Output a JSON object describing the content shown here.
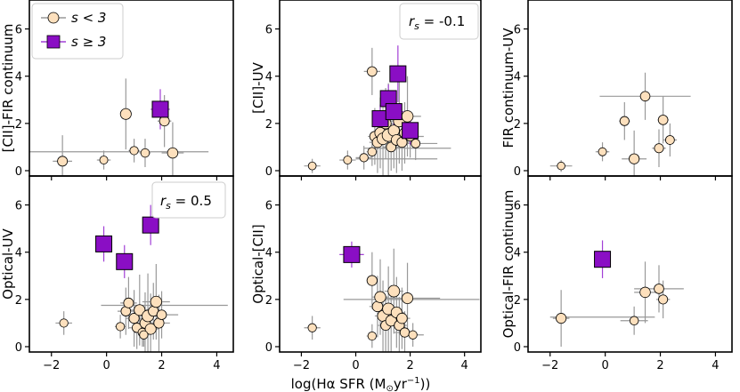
{
  "colors": {
    "low": "#fde0bd",
    "high": "#8a0ec4",
    "err_low": "#999999",
    "err_high": "#a23fd6",
    "edge": "#000000"
  },
  "legend": {
    "low_label": "s < 3",
    "high_label": "s ≥ 3"
  },
  "chart_data": [
    {
      "id": "cii-fir",
      "type": "scatter",
      "ylabel": "[CII]-FIR continuum",
      "xlim": [
        -2.8,
        4.6
      ],
      "ylim": [
        0,
        7
      ],
      "xticks": [
        -2,
        0,
        2,
        4
      ],
      "yticks": [
        0,
        2,
        4,
        6
      ],
      "legend": "top-left",
      "series": [
        {
          "group": "low",
          "points": [
            {
              "x": -1.6,
              "y": 0.4,
              "xe": 0.35,
              "ye": 1.1
            },
            {
              "x": -0.1,
              "y": 0.45,
              "xe": 0.25,
              "ye": 0.4
            },
            {
              "x": 0.7,
              "y": 2.4,
              "xe": 0.2,
              "ye": 1.5
            },
            {
              "x": 1.0,
              "y": 0.85,
              "xe": 0.2,
              "ye": 0.5
            },
            {
              "x": 1.4,
              "y": 0.75,
              "xe": 0.2,
              "ye": 0.6
            },
            {
              "x": 2.1,
              "y": 2.1,
              "xe": 0.25,
              "ye": 1.1
            },
            {
              "x": 2.4,
              "y": 0.75,
              "xe": 0.4,
              "ye": 1.3
            },
            {
              "x": 0.2,
              "y": 0.8,
              "xe": 3.5,
              "ye": 0
            }
          ]
        },
        {
          "group": "high",
          "points": [
            {
              "x": 1.95,
              "y": 2.6,
              "xe": 0.35,
              "ye": 0.85
            }
          ]
        }
      ]
    },
    {
      "id": "cii-uv",
      "type": "scatter",
      "ylabel": "[CII]-UV",
      "annotation": "r_s = -0.1",
      "xlim": [
        -2.8,
        4.6
      ],
      "ylim": [
        0,
        7
      ],
      "xticks": [
        -2,
        0,
        2,
        4
      ],
      "yticks": [
        0,
        2,
        4,
        6
      ],
      "series": [
        {
          "group": "low",
          "points": [
            {
              "x": -1.6,
              "y": 0.2,
              "xe": 0.3,
              "ye": 0.3
            },
            {
              "x": -0.3,
              "y": 0.45,
              "xe": 0.3,
              "ye": 0.4
            },
            {
              "x": 0.3,
              "y": 0.55,
              "xe": 0.3,
              "ye": 0.5
            },
            {
              "x": 0.6,
              "y": 4.2,
              "xe": 0.3,
              "ye": 1.0
            },
            {
              "x": 0.6,
              "y": 0.8,
              "xe": 0.2,
              "ye": 0.6
            },
            {
              "x": 0.7,
              "y": 1.45,
              "xe": 0.25,
              "ye": 1.2
            },
            {
              "x": 0.8,
              "y": 1.2,
              "xe": 0.3,
              "ye": 1.3
            },
            {
              "x": 0.9,
              "y": 1.6,
              "xe": 0.3,
              "ye": 1.5
            },
            {
              "x": 1.0,
              "y": 1.35,
              "xe": 0.35,
              "ye": 1.8
            },
            {
              "x": 1.1,
              "y": 2.0,
              "xe": 0.3,
              "ye": 1.5
            },
            {
              "x": 1.2,
              "y": 1.5,
              "xe": 0.35,
              "ye": 2.2
            },
            {
              "x": 1.3,
              "y": 1.0,
              "xe": 0.3,
              "ye": 1.0
            },
            {
              "x": 1.4,
              "y": 1.7,
              "xe": 0.4,
              "ye": 1.6
            },
            {
              "x": 1.5,
              "y": 1.3,
              "xe": 0.3,
              "ye": 1.4
            },
            {
              "x": 1.6,
              "y": 2.1,
              "xe": 0.35,
              "ye": 1.8
            },
            {
              "x": 1.7,
              "y": 1.2,
              "xe": 0.4,
              "ye": 1.2
            },
            {
              "x": 1.8,
              "y": 1.6,
              "xe": 0.3,
              "ye": 1.3
            },
            {
              "x": 1.9,
              "y": 2.3,
              "xe": 0.5,
              "ye": 1.7
            },
            {
              "x": 2.0,
              "y": 1.45,
              "xe": 0.5,
              "ye": 0.9
            },
            {
              "x": 2.2,
              "y": 1.15,
              "xe": 0.8,
              "ye": 0.7
            },
            {
              "x": 1.5,
              "y": 0.5,
              "xe": 1.5,
              "ye": 0
            },
            {
              "x": 1.9,
              "y": 0.95,
              "xe": 1.6,
              "ye": 0
            }
          ]
        },
        {
          "group": "high",
          "points": [
            {
              "x": 1.2,
              "y": 3.05,
              "xe": 0.3,
              "ye": 0.6
            },
            {
              "x": 1.55,
              "y": 4.1,
              "xe": 0.25,
              "ye": 1.2
            },
            {
              "x": 0.9,
              "y": 2.2,
              "xe": 0.3,
              "ye": 0.6
            },
            {
              "x": 1.4,
              "y": 2.5,
              "xe": 0.35,
              "ye": 0.7
            },
            {
              "x": 2.0,
              "y": 1.7,
              "xe": 0.25,
              "ye": 0.6
            }
          ]
        }
      ]
    },
    {
      "id": "fir-uv",
      "type": "scatter",
      "ylabel": "FIR continuum-UV",
      "xlim": [
        -2.8,
        4.6
      ],
      "ylim": [
        0,
        7
      ],
      "xticks": [
        -2,
        0,
        2,
        4
      ],
      "yticks": [
        0,
        2,
        4,
        6
      ],
      "series": [
        {
          "group": "low",
          "points": [
            {
              "x": -1.6,
              "y": 0.2,
              "xe": 0.4,
              "ye": 0.25
            },
            {
              "x": -0.1,
              "y": 0.8,
              "xe": 0.25,
              "ye": 0.4
            },
            {
              "x": 0.7,
              "y": 2.1,
              "xe": 0.2,
              "ye": 0.8
            },
            {
              "x": 1.05,
              "y": 0.5,
              "xe": 0.45,
              "ye": 1.2
            },
            {
              "x": 1.45,
              "y": 3.15,
              "xe": 1.65,
              "ye": 1.0
            },
            {
              "x": 1.95,
              "y": 0.95,
              "xe": 0.25,
              "ye": 0.8
            },
            {
              "x": 2.1,
              "y": 2.15,
              "xe": 0.2,
              "ye": 1.0
            },
            {
              "x": 2.35,
              "y": 1.3,
              "xe": 0.25,
              "ye": 0.7
            }
          ]
        },
        {
          "group": "high",
          "points": []
        }
      ]
    },
    {
      "id": "opt-uv",
      "type": "scatter",
      "ylabel": "Optical-UV",
      "annotation": "r_s = 0.5",
      "xlim": [
        -2.8,
        4.6
      ],
      "ylim": [
        0,
        7
      ],
      "xticks": [
        -2,
        0,
        2,
        4
      ],
      "yticks": [
        0,
        2,
        4,
        6
      ],
      "series": [
        {
          "group": "low",
          "points": [
            {
              "x": -1.55,
              "y": 1.0,
              "xe": 0.3,
              "ye": 0.5
            },
            {
              "x": 0.5,
              "y": 0.85,
              "xe": 0.2,
              "ye": 0.5
            },
            {
              "x": 0.7,
              "y": 1.5,
              "xe": 0.3,
              "ye": 1.0
            },
            {
              "x": 0.8,
              "y": 1.85,
              "xe": 0.3,
              "ye": 1.1
            },
            {
              "x": 1.0,
              "y": 1.2,
              "xe": 0.3,
              "ye": 1.2
            },
            {
              "x": 1.1,
              "y": 0.8,
              "xe": 0.3,
              "ye": 0.9
            },
            {
              "x": 1.2,
              "y": 1.55,
              "xe": 0.35,
              "ye": 1.5
            },
            {
              "x": 1.3,
              "y": 0.6,
              "xe": 0.3,
              "ye": 0.6
            },
            {
              "x": 1.4,
              "y": 1.0,
              "xe": 0.3,
              "ye": 1.3
            },
            {
              "x": 1.5,
              "y": 1.3,
              "xe": 0.35,
              "ye": 1.8
            },
            {
              "x": 1.6,
              "y": 0.75,
              "xe": 0.3,
              "ye": 1.5
            },
            {
              "x": 1.7,
              "y": 1.5,
              "xe": 0.4,
              "ye": 1.2
            },
            {
              "x": 1.8,
              "y": 1.9,
              "xe": 0.5,
              "ye": 1.6
            },
            {
              "x": 1.9,
              "y": 1.0,
              "xe": 0.4,
              "ye": 1.2
            },
            {
              "x": 2.0,
              "y": 1.35,
              "xe": 0.6,
              "ye": 1.0
            },
            {
              "x": 2.1,
              "y": 1.75,
              "xe": 2.3,
              "ye": 0
            },
            {
              "x": 1.35,
              "y": 0.5,
              "xe": 0.2,
              "ye": 0.5
            }
          ]
        },
        {
          "group": "high",
          "points": [
            {
              "x": -0.1,
              "y": 4.35,
              "xe": 0.3,
              "ye": 0.75
            },
            {
              "x": 0.65,
              "y": 3.6,
              "xe": 0.15,
              "ye": 0.7
            },
            {
              "x": 1.6,
              "y": 5.15,
              "xe": 0.3,
              "ye": 0.85
            }
          ]
        }
      ]
    },
    {
      "id": "opt-cii",
      "type": "scatter",
      "ylabel": "Optical-[CII]",
      "xlabel": "log(Hα SFR (M⊙yr⁻¹))",
      "xlim": [
        -2.8,
        4.6
      ],
      "ylim": [
        0,
        7
      ],
      "xticks": [
        -2,
        0,
        2,
        4
      ],
      "yticks": [
        0,
        2,
        4,
        6
      ],
      "series": [
        {
          "group": "low",
          "points": [
            {
              "x": -1.6,
              "y": 0.8,
              "xe": 0.3,
              "ye": 0.5
            },
            {
              "x": 0.6,
              "y": 2.8,
              "xe": 0.2,
              "ye": 1.2
            },
            {
              "x": 0.6,
              "y": 0.45,
              "xe": 0.2,
              "ye": 0.5
            },
            {
              "x": 0.8,
              "y": 1.7,
              "xe": 0.3,
              "ye": 1.3
            },
            {
              "x": 0.9,
              "y": 2.1,
              "xe": 0.3,
              "ye": 1.6
            },
            {
              "x": 1.0,
              "y": 1.3,
              "xe": 0.3,
              "ye": 1.5
            },
            {
              "x": 1.1,
              "y": 0.9,
              "xe": 0.3,
              "ye": 1.1
            },
            {
              "x": 1.2,
              "y": 1.6,
              "xe": 0.3,
              "ye": 1.8
            },
            {
              "x": 1.3,
              "y": 1.1,
              "xe": 0.3,
              "ye": 1.5
            },
            {
              "x": 1.4,
              "y": 2.35,
              "xe": 0.35,
              "ye": 1.8
            },
            {
              "x": 1.5,
              "y": 1.45,
              "xe": 0.3,
              "ye": 1.5
            },
            {
              "x": 1.6,
              "y": 0.9,
              "xe": 0.3,
              "ye": 1.2
            },
            {
              "x": 1.7,
              "y": 1.2,
              "xe": 0.3,
              "ye": 1.3
            },
            {
              "x": 1.8,
              "y": 0.6,
              "xe": 0.4,
              "ye": 0.9
            },
            {
              "x": 1.9,
              "y": 2.05,
              "xe": 1.2,
              "ye": 1.5
            },
            {
              "x": 2.05,
              "y": 2.0,
              "xe": 2.5,
              "ye": 0
            },
            {
              "x": 2.1,
              "y": 0.5,
              "xe": 0.4,
              "ye": 0.5
            }
          ]
        },
        {
          "group": "high",
          "points": [
            {
              "x": -0.15,
              "y": 3.9,
              "xe": 0.45,
              "ye": 0.55
            }
          ]
        }
      ]
    },
    {
      "id": "opt-fir",
      "type": "scatter",
      "ylabel": "Optical-FIR continuum",
      "xlim": [
        -2.8,
        4.6
      ],
      "ylim": [
        0,
        7
      ],
      "xticks": [
        -2,
        0,
        2,
        4
      ],
      "yticks": [
        0,
        2,
        4,
        6
      ],
      "series": [
        {
          "group": "low",
          "points": [
            {
              "x": -1.6,
              "y": 1.2,
              "xe": 0.3,
              "ye": 1.2
            },
            {
              "x": 1.05,
              "y": 1.1,
              "xe": 0.5,
              "ye": 0.6
            },
            {
              "x": 1.45,
              "y": 2.3,
              "xe": 0.4,
              "ye": 1.3
            },
            {
              "x": 1.95,
              "y": 2.45,
              "xe": 0.9,
              "ye": 1.0
            },
            {
              "x": 2.1,
              "y": 2.0,
              "xe": 0.25,
              "ye": 0.8
            },
            {
              "x": -0.1,
              "y": 1.25,
              "xe": 1.9,
              "ye": 0
            }
          ]
        },
        {
          "group": "high",
          "points": [
            {
              "x": -0.1,
              "y": 3.7,
              "xe": 0.25,
              "ye": 0.8
            }
          ]
        }
      ]
    }
  ]
}
